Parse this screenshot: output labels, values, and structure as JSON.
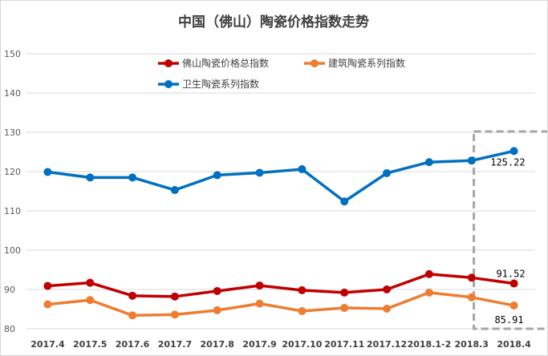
{
  "chart_data": {
    "type": "line",
    "title": "中国（佛山）陶瓷价格指数走势",
    "categories": [
      "2017.4",
      "2017.5",
      "2017.6",
      "2017.7",
      "2017.8",
      "2017.9",
      "2017.10",
      "2017.11",
      "2017.12",
      "2018.1-2",
      "2018.3",
      "2018.4"
    ],
    "ylim": [
      80,
      150
    ],
    "yticks": [
      80,
      90,
      100,
      110,
      120,
      130,
      140,
      150
    ],
    "grid": true,
    "legend_position": "top-left",
    "highlight": "dashed box around the last category",
    "series": [
      {
        "name": "佛山陶瓷价格总指数",
        "color": "#c00000",
        "values": [
          90.9,
          91.7,
          88.4,
          88.2,
          89.6,
          91.0,
          89.8,
          89.2,
          90.0,
          93.9,
          93.0,
          91.52
        ],
        "end_label": "91.52"
      },
      {
        "name": "建筑陶瓷系列指数",
        "color": "#ed7d31",
        "values": [
          86.2,
          87.3,
          83.4,
          83.6,
          84.7,
          86.4,
          84.5,
          85.3,
          85.1,
          89.2,
          88.0,
          85.91
        ],
        "end_label": "85.91"
      },
      {
        "name": "卫生陶瓷系列指数",
        "color": "#0070c0",
        "values": [
          119.9,
          118.5,
          118.5,
          115.3,
          119.1,
          119.7,
          120.6,
          112.4,
          119.6,
          122.4,
          122.8,
          125.22
        ],
        "end_label": "125.22"
      }
    ]
  }
}
